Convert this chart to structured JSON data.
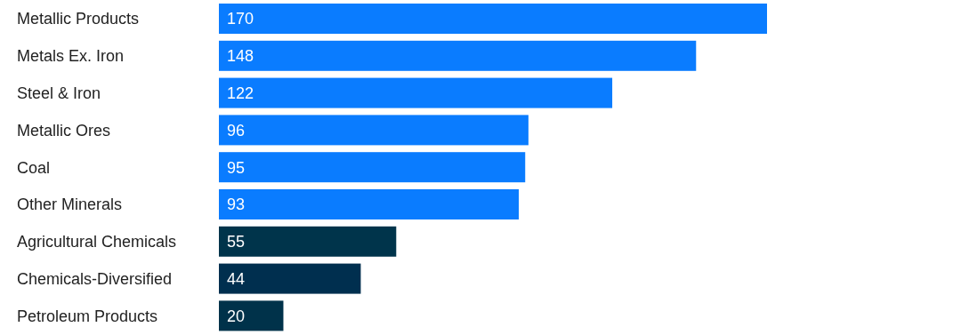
{
  "chart_data": {
    "type": "bar",
    "orientation": "horizontal",
    "categories": [
      "Metallic Products",
      "Metals Ex. Iron",
      "Steel & Iron",
      "Metallic Ores",
      "Coal",
      "Other Minerals",
      "Agricultural Chemicals",
      "Chemicals-Diversified",
      "Petroleum Products"
    ],
    "values": [
      170,
      148,
      122,
      96,
      95,
      93,
      55,
      44,
      20
    ],
    "colors": [
      "#0a7cff",
      "#0a7cff",
      "#0a7cff",
      "#0a7cff",
      "#0a7cff",
      "#0a7cff",
      "#00344b",
      "#002f4f",
      "#00324a"
    ],
    "data_labels": true
  }
}
